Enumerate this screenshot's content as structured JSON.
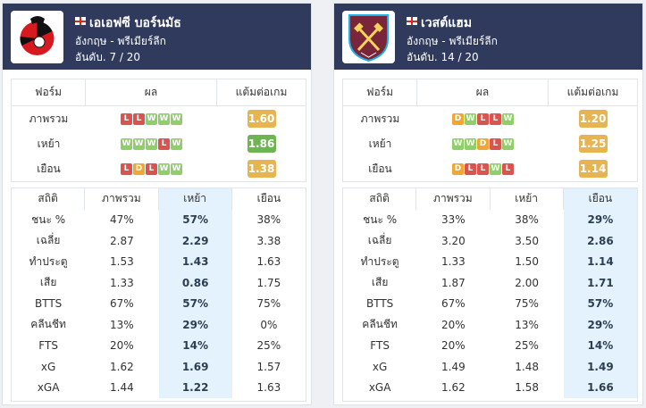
{
  "teams": [
    {
      "name": "เอเอฟซี บอร์นมัธ",
      "league": "อังกฤษ - พรีเมียร์ลีก",
      "rank": "อันดับ. 7 / 20",
      "form_headers": [
        "ฟอร์ม",
        "ผล",
        "แต้มต่อเกม"
      ],
      "form_rows": [
        {
          "label": "ภาพรวม",
          "results": [
            "L",
            "L",
            "W",
            "W",
            "W"
          ],
          "ppg": "1.60",
          "ppg_color": "#e6b450"
        },
        {
          "label": "เหย้า",
          "results": [
            "W",
            "W",
            "W",
            "L",
            "W"
          ],
          "ppg": "1.86",
          "ppg_color": "#6fb453"
        },
        {
          "label": "เยือน",
          "results": [
            "L",
            "D",
            "L",
            "W",
            "W"
          ],
          "ppg": "1.38",
          "ppg_color": "#e6b450"
        }
      ],
      "stats_headers": [
        "สถิติ",
        "ภาพรวม",
        "เหย้า",
        "เยือน"
      ],
      "highlight_col": 2,
      "stats_rows": [
        [
          "ชนะ %",
          "47%",
          "57%",
          "38%"
        ],
        [
          "เฉลี่ย",
          "2.87",
          "2.29",
          "3.38"
        ],
        [
          "ทำประตู",
          "1.53",
          "1.43",
          "1.63"
        ],
        [
          "เสีย",
          "1.33",
          "0.86",
          "1.75"
        ],
        [
          "BTTS",
          "67%",
          "57%",
          "75%"
        ],
        [
          "คลีนชีท",
          "13%",
          "29%",
          "0%"
        ],
        [
          "FTS",
          "20%",
          "14%",
          "25%"
        ],
        [
          "xG",
          "1.62",
          "1.69",
          "1.57"
        ],
        [
          "xGA",
          "1.44",
          "1.22",
          "1.63"
        ]
      ]
    },
    {
      "name": "เวสต์แฮม",
      "league": "อังกฤษ - พรีเมียร์ลีก",
      "rank": "อันดับ. 14 / 20",
      "form_headers": [
        "ฟอร์ม",
        "ผล",
        "แต้มต่อเกม"
      ],
      "form_rows": [
        {
          "label": "ภาพรวม",
          "results": [
            "D",
            "W",
            "L",
            "L",
            "W"
          ],
          "ppg": "1.20",
          "ppg_color": "#e6b450"
        },
        {
          "label": "เหย้า",
          "results": [
            "W",
            "W",
            "D",
            "L",
            "W"
          ],
          "ppg": "1.25",
          "ppg_color": "#e6b450"
        },
        {
          "label": "เยือน",
          "results": [
            "D",
            "L",
            "L",
            "W",
            "L"
          ],
          "ppg": "1.14",
          "ppg_color": "#e6b450"
        }
      ],
      "stats_headers": [
        "สถิติ",
        "ภาพรวม",
        "เหย้า",
        "เยือน"
      ],
      "highlight_col": 3,
      "stats_rows": [
        [
          "ชนะ %",
          "33%",
          "38%",
          "29%"
        ],
        [
          "เฉลี่ย",
          "3.20",
          "3.50",
          "2.86"
        ],
        [
          "ทำประตู",
          "1.33",
          "1.50",
          "1.14"
        ],
        [
          "เสีย",
          "1.87",
          "2.00",
          "1.71"
        ],
        [
          "BTTS",
          "67%",
          "75%",
          "57%"
        ],
        [
          "คลีนชีท",
          "20%",
          "13%",
          "29%"
        ],
        [
          "FTS",
          "20%",
          "25%",
          "14%"
        ],
        [
          "xG",
          "1.49",
          "1.48",
          "1.49"
        ],
        [
          "xGA",
          "1.62",
          "1.58",
          "1.66"
        ]
      ]
    }
  ]
}
